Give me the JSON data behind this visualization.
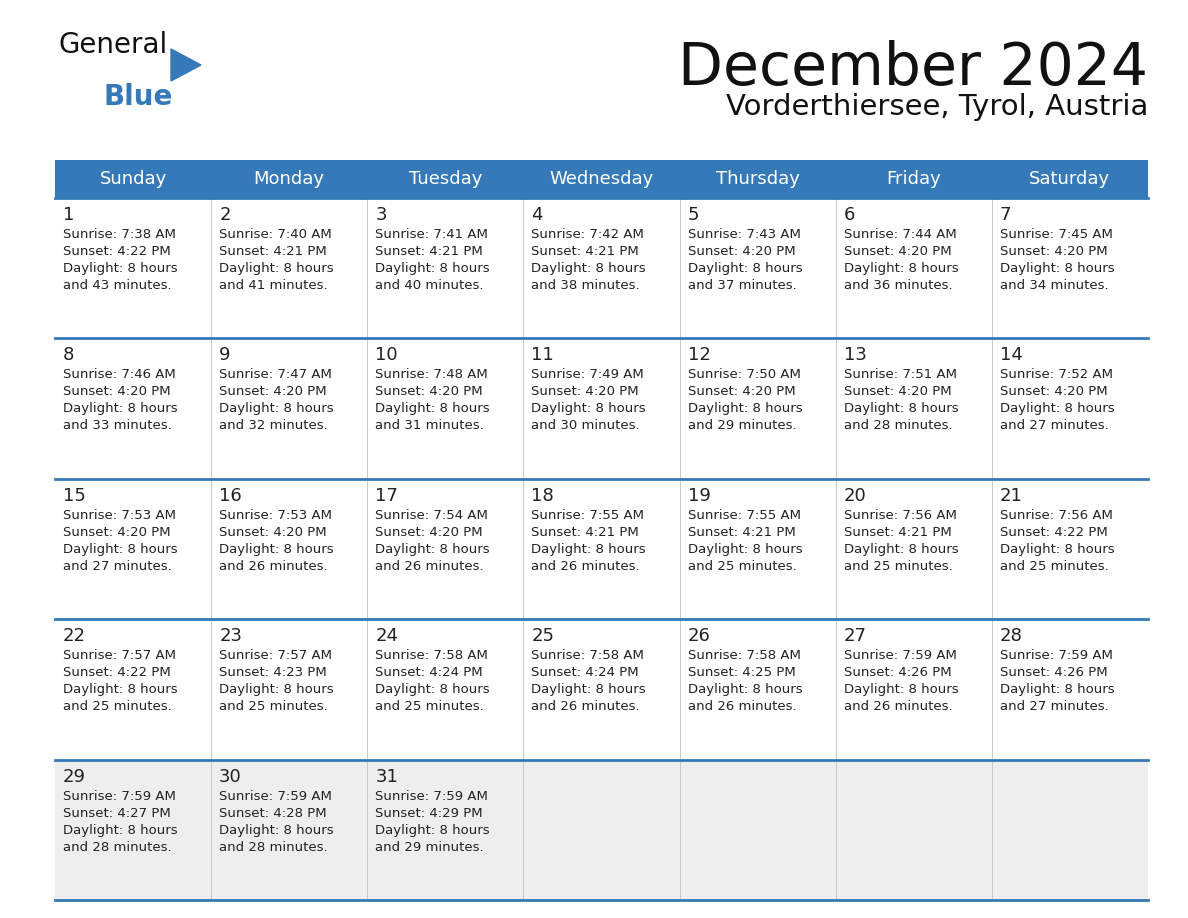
{
  "title": "December 2024",
  "subtitle": "Vorderthiersee, Tyrol, Austria",
  "header_color": "#3579b8",
  "header_text_color": "#ffffff",
  "bg_color": "#ffffff",
  "cell_bg_white": "#ffffff",
  "cell_bg_grey": "#eeeeee",
  "row_line_color": "#3579b8",
  "text_color": "#222222",
  "days_of_week": [
    "Sunday",
    "Monday",
    "Tuesday",
    "Wednesday",
    "Thursday",
    "Friday",
    "Saturday"
  ],
  "calendar": [
    [
      {
        "day": 1,
        "sunrise": "7:38 AM",
        "sunset": "4:22 PM",
        "daylight_min": "43 minutes."
      },
      {
        "day": 2,
        "sunrise": "7:40 AM",
        "sunset": "4:21 PM",
        "daylight_min": "41 minutes."
      },
      {
        "day": 3,
        "sunrise": "7:41 AM",
        "sunset": "4:21 PM",
        "daylight_min": "40 minutes."
      },
      {
        "day": 4,
        "sunrise": "7:42 AM",
        "sunset": "4:21 PM",
        "daylight_min": "38 minutes."
      },
      {
        "day": 5,
        "sunrise": "7:43 AM",
        "sunset": "4:20 PM",
        "daylight_min": "37 minutes."
      },
      {
        "day": 6,
        "sunrise": "7:44 AM",
        "sunset": "4:20 PM",
        "daylight_min": "36 minutes."
      },
      {
        "day": 7,
        "sunrise": "7:45 AM",
        "sunset": "4:20 PM",
        "daylight_min": "34 minutes."
      }
    ],
    [
      {
        "day": 8,
        "sunrise": "7:46 AM",
        "sunset": "4:20 PM",
        "daylight_min": "33 minutes."
      },
      {
        "day": 9,
        "sunrise": "7:47 AM",
        "sunset": "4:20 PM",
        "daylight_min": "32 minutes."
      },
      {
        "day": 10,
        "sunrise": "7:48 AM",
        "sunset": "4:20 PM",
        "daylight_min": "31 minutes."
      },
      {
        "day": 11,
        "sunrise": "7:49 AM",
        "sunset": "4:20 PM",
        "daylight_min": "30 minutes."
      },
      {
        "day": 12,
        "sunrise": "7:50 AM",
        "sunset": "4:20 PM",
        "daylight_min": "29 minutes."
      },
      {
        "day": 13,
        "sunrise": "7:51 AM",
        "sunset": "4:20 PM",
        "daylight_min": "28 minutes."
      },
      {
        "day": 14,
        "sunrise": "7:52 AM",
        "sunset": "4:20 PM",
        "daylight_min": "27 minutes."
      }
    ],
    [
      {
        "day": 15,
        "sunrise": "7:53 AM",
        "sunset": "4:20 PM",
        "daylight_min": "27 minutes."
      },
      {
        "day": 16,
        "sunrise": "7:53 AM",
        "sunset": "4:20 PM",
        "daylight_min": "26 minutes."
      },
      {
        "day": 17,
        "sunrise": "7:54 AM",
        "sunset": "4:20 PM",
        "daylight_min": "26 minutes."
      },
      {
        "day": 18,
        "sunrise": "7:55 AM",
        "sunset": "4:21 PM",
        "daylight_min": "26 minutes."
      },
      {
        "day": 19,
        "sunrise": "7:55 AM",
        "sunset": "4:21 PM",
        "daylight_min": "25 minutes."
      },
      {
        "day": 20,
        "sunrise": "7:56 AM",
        "sunset": "4:21 PM",
        "daylight_min": "25 minutes."
      },
      {
        "day": 21,
        "sunrise": "7:56 AM",
        "sunset": "4:22 PM",
        "daylight_min": "25 minutes."
      }
    ],
    [
      {
        "day": 22,
        "sunrise": "7:57 AM",
        "sunset": "4:22 PM",
        "daylight_min": "25 minutes."
      },
      {
        "day": 23,
        "sunrise": "7:57 AM",
        "sunset": "4:23 PM",
        "daylight_min": "25 minutes."
      },
      {
        "day": 24,
        "sunrise": "7:58 AM",
        "sunset": "4:24 PM",
        "daylight_min": "25 minutes."
      },
      {
        "day": 25,
        "sunrise": "7:58 AM",
        "sunset": "4:24 PM",
        "daylight_min": "26 minutes."
      },
      {
        "day": 26,
        "sunrise": "7:58 AM",
        "sunset": "4:25 PM",
        "daylight_min": "26 minutes."
      },
      {
        "day": 27,
        "sunrise": "7:59 AM",
        "sunset": "4:26 PM",
        "daylight_min": "26 minutes."
      },
      {
        "day": 28,
        "sunrise": "7:59 AM",
        "sunset": "4:26 PM",
        "daylight_min": "27 minutes."
      }
    ],
    [
      {
        "day": 29,
        "sunrise": "7:59 AM",
        "sunset": "4:27 PM",
        "daylight_min": "28 minutes."
      },
      {
        "day": 30,
        "sunrise": "7:59 AM",
        "sunset": "4:28 PM",
        "daylight_min": "28 minutes."
      },
      {
        "day": 31,
        "sunrise": "7:59 AM",
        "sunset": "4:29 PM",
        "daylight_min": "29 minutes."
      },
      null,
      null,
      null,
      null
    ]
  ]
}
